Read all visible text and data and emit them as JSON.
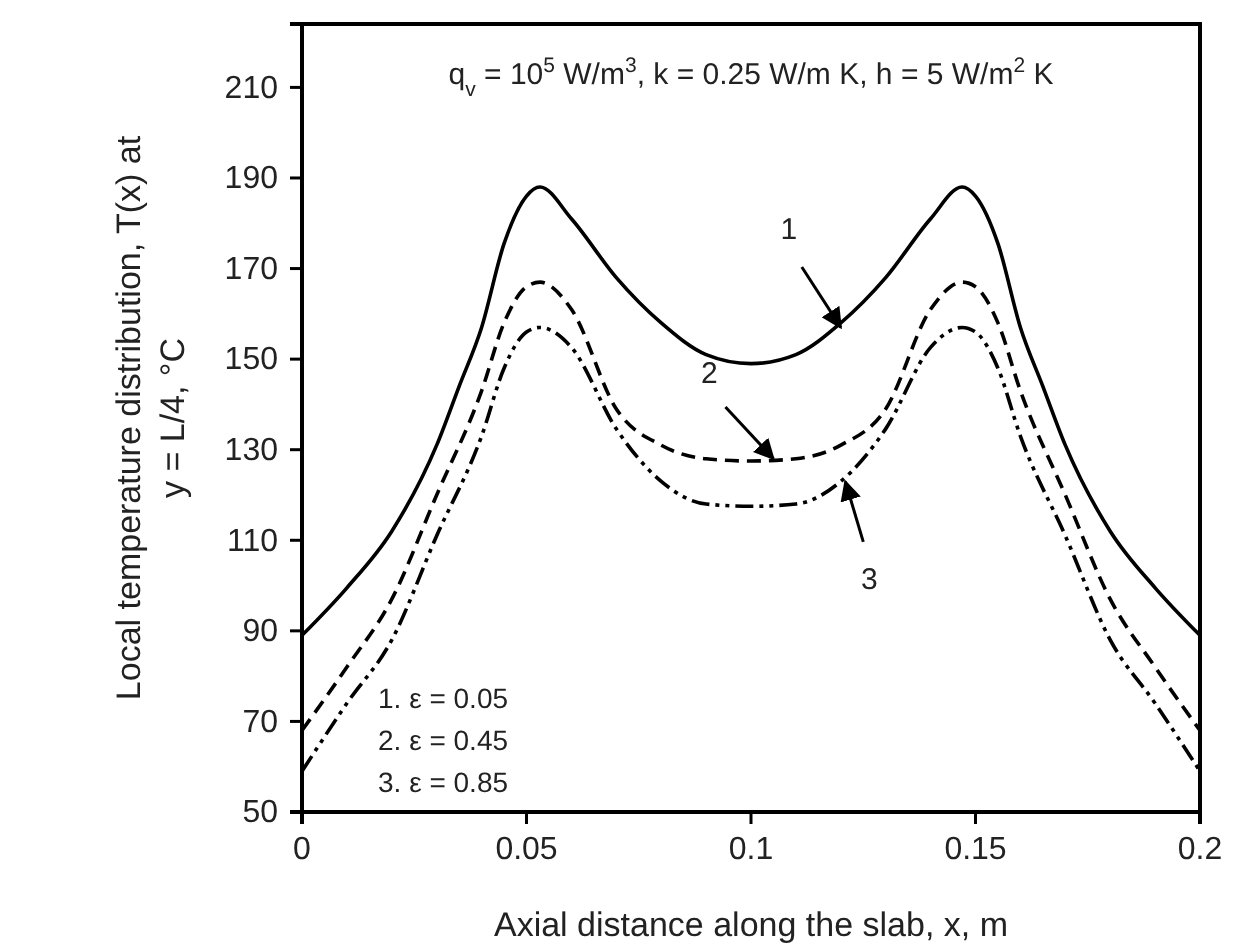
{
  "chart_data": {
    "type": "line",
    "xlabel": "Axial distance along the slab, x, m",
    "ylabel": "Local temperature distribution, T(x) at\ny = L/4, °C",
    "xlim": [
      0,
      0.2
    ],
    "xticks": [
      0,
      0.05,
      0.1,
      0.15,
      0.2
    ],
    "ylim": [
      50,
      224
    ],
    "yticks": [
      50,
      70,
      90,
      110,
      130,
      150,
      170,
      190,
      210
    ],
    "grid": false,
    "marker": "none",
    "series": [
      {
        "color": "#000000",
        "line_style": "solid",
        "x": [
          0,
          0.01,
          0.02,
          0.03,
          0.035,
          0.04,
          0.045,
          0.05,
          0.053,
          0.06,
          0.07,
          0.08,
          0.09,
          0.1,
          0.11,
          0.12,
          0.13,
          0.14,
          0.147,
          0.15,
          0.155,
          0.16,
          0.165,
          0.17,
          0.18,
          0.19,
          0.2
        ],
        "values": [
          89,
          99.5,
          112,
          131,
          144,
          157,
          175.5,
          186,
          188,
          181,
          168,
          158,
          151,
          149,
          151,
          158,
          168,
          181,
          188,
          186,
          175.5,
          157,
          144,
          131,
          112,
          99.5,
          89
        ]
      },
      {
        "color": "#000000",
        "line_style": "dashed",
        "x": [
          0,
          0.01,
          0.02,
          0.03,
          0.04,
          0.045,
          0.05,
          0.053,
          0.06,
          0.07,
          0.08,
          0.09,
          0.1,
          0.11,
          0.12,
          0.13,
          0.14,
          0.147,
          0.15,
          0.155,
          0.16,
          0.17,
          0.18,
          0.19,
          0.2
        ],
        "values": [
          68,
          82,
          97,
          120,
          143,
          158,
          166,
          167,
          161,
          139,
          131,
          128,
          127.5,
          128,
          131,
          139,
          161,
          167,
          166,
          158,
          143,
          120,
          97,
          82,
          68
        ]
      },
      {
        "color": "#000000",
        "line_style": "dotted",
        "x": [
          0,
          0.01,
          0.02,
          0.03,
          0.04,
          0.045,
          0.05,
          0.053,
          0.06,
          0.07,
          0.08,
          0.09,
          0.1,
          0.11,
          0.12,
          0.13,
          0.14,
          0.147,
          0.15,
          0.155,
          0.16,
          0.17,
          0.18,
          0.19,
          0.2
        ],
        "values": [
          59,
          74,
          88,
          111,
          133,
          148,
          156,
          157,
          152.6,
          134.6,
          123,
          118,
          117.5,
          118,
          123,
          134.6,
          152.6,
          157,
          156,
          148,
          133,
          111,
          88,
          74,
          59
        ]
      }
    ],
    "annotations": [
      "q$_{v}$ = 10$^{5}$ W/m$^{3}$, k = 0.25 W/m K, h = 5 W/m$^{2}$ K",
      "1. ε = 0.05",
      "2. ε = 0.45",
      "3. ε = 0.85",
      {
        "text": "1",
        "x": 0.12,
        "y": 157
      },
      {
        "text": "2",
        "x": 0.105,
        "y": 128
      },
      {
        "text": "3",
        "x": 0.121,
        "y": 123
      }
    ]
  }
}
